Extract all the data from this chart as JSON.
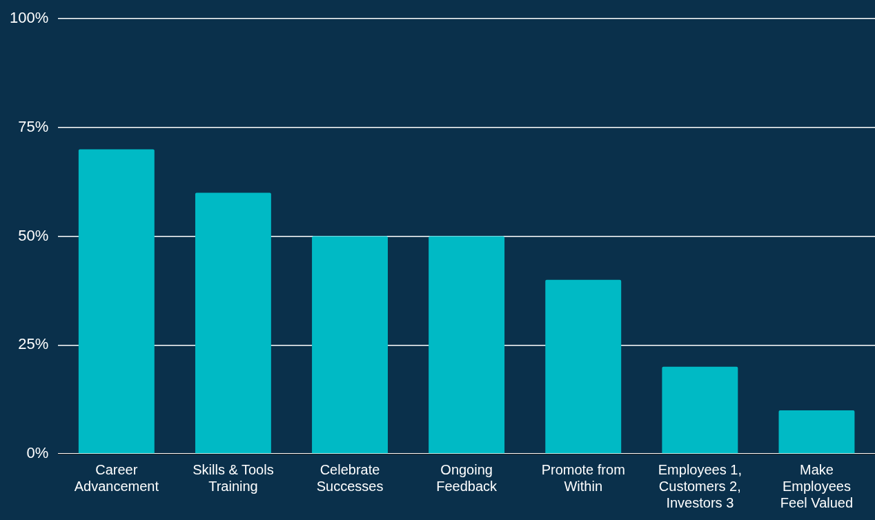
{
  "chart_data": {
    "type": "bar",
    "categories": [
      "Career Advancement",
      "Skills & Tools Training",
      "Celebrate Successes",
      "Ongoing Feedback",
      "Promote from Within",
      "Employees 1, Customers 2, Investors 3",
      "Make Employees Feel Valued"
    ],
    "values": [
      70,
      60,
      50,
      50,
      40,
      20,
      10
    ],
    "color": "#00bac5",
    "ylim": [
      0,
      100
    ],
    "yticks": [
      {
        "value": 0,
        "label": "0%"
      },
      {
        "value": 25,
        "label": "25%"
      },
      {
        "value": 50,
        "label": "50%"
      },
      {
        "value": 75,
        "label": "75%"
      },
      {
        "value": 100,
        "label": "100%"
      }
    ],
    "grid": "y",
    "legend": false
  }
}
